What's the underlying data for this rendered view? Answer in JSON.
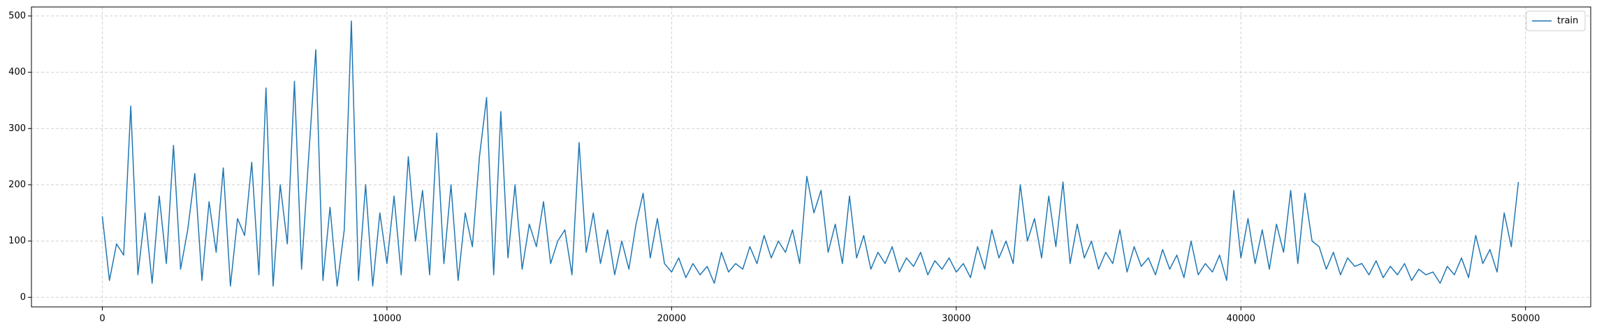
{
  "chart_data": {
    "type": "line",
    "x": [
      0,
      250,
      500,
      750,
      1000,
      1250,
      1500,
      1750,
      2000,
      2250,
      2500,
      2750,
      3000,
      3250,
      3500,
      3750,
      4000,
      4250,
      4500,
      4750,
      5000,
      5250,
      5500,
      5750,
      6000,
      6250,
      6500,
      6750,
      7000,
      7250,
      7500,
      7750,
      8000,
      8250,
      8500,
      8750,
      9000,
      9250,
      9500,
      9750,
      10000,
      10250,
      10500,
      10750,
      11000,
      11250,
      11500,
      11750,
      12000,
      12250,
      12500,
      12750,
      13000,
      13250,
      13500,
      13750,
      14000,
      14250,
      14500,
      14750,
      15000,
      15250,
      15500,
      15750,
      16000,
      16250,
      16500,
      16750,
      17000,
      17250,
      17500,
      17750,
      18000,
      18250,
      18500,
      18750,
      19000,
      19250,
      19500,
      19750,
      20000,
      20250,
      20500,
      20750,
      21000,
      21250,
      21500,
      21750,
      22000,
      22250,
      22500,
      22750,
      23000,
      23250,
      23500,
      23750,
      24000,
      24250,
      24500,
      24750,
      25000,
      25250,
      25500,
      25750,
      26000,
      26250,
      26500,
      26750,
      27000,
      27250,
      27500,
      27750,
      28000,
      28250,
      28500,
      28750,
      29000,
      29250,
      29500,
      29750,
      30000,
      30250,
      30500,
      30750,
      31000,
      31250,
      31500,
      31750,
      32000,
      32250,
      32500,
      32750,
      33000,
      33250,
      33500,
      33750,
      34000,
      34250,
      34500,
      34750,
      35000,
      35250,
      35500,
      35750,
      36000,
      36250,
      36500,
      36750,
      37000,
      37250,
      37500,
      37750,
      38000,
      38250,
      38500,
      38750,
      39000,
      39250,
      39500,
      39750,
      40000,
      40250,
      40500,
      40750,
      41000,
      41250,
      41500,
      41750,
      42000,
      42250,
      42500,
      42750,
      43000,
      43250,
      43500,
      43750,
      44000,
      44250,
      44500,
      44750,
      45000,
      45250,
      45500,
      45750,
      46000,
      46250,
      46500,
      46750,
      47000,
      47250,
      47500,
      47750,
      48000,
      48250,
      48500,
      48750,
      49000,
      49250,
      49500,
      49750
    ],
    "series": [
      {
        "name": "train",
        "color": "#1f77b4",
        "values": [
          144,
          30,
          95,
          75,
          340,
          40,
          150,
          25,
          180,
          60,
          270,
          50,
          120,
          220,
          30,
          170,
          80,
          230,
          20,
          140,
          110,
          240,
          40,
          372,
          20,
          200,
          95,
          384,
          50,
          250,
          440,
          30,
          160,
          20,
          120,
          491,
          30,
          200,
          20,
          150,
          60,
          180,
          40,
          250,
          100,
          190,
          40,
          292,
          60,
          200,
          30,
          150,
          90,
          250,
          355,
          40,
          330,
          70,
          200,
          50,
          130,
          90,
          170,
          60,
          100,
          120,
          40,
          275,
          80,
          150,
          60,
          120,
          40,
          100,
          50,
          130,
          185,
          70,
          140,
          60,
          45,
          70,
          35,
          60,
          40,
          55,
          25,
          80,
          45,
          60,
          50,
          90,
          60,
          110,
          70,
          100,
          80,
          120,
          60,
          215,
          150,
          190,
          80,
          130,
          60,
          180,
          70,
          110,
          50,
          80,
          60,
          90,
          45,
          70,
          55,
          80,
          40,
          65,
          50,
          70,
          45,
          60,
          35,
          90,
          50,
          120,
          70,
          100,
          60,
          200,
          100,
          140,
          70,
          180,
          90,
          205,
          60,
          130,
          70,
          100,
          50,
          80,
          60,
          120,
          45,
          90,
          55,
          70,
          40,
          85,
          50,
          75,
          35,
          100,
          40,
          60,
          45,
          75,
          30,
          190,
          70,
          140,
          60,
          120,
          50,
          130,
          80,
          190,
          60,
          185,
          100,
          90,
          50,
          80,
          40,
          70,
          55,
          60,
          40,
          65,
          35,
          55,
          40,
          60,
          30,
          50,
          40,
          45,
          25,
          55,
          40,
          70,
          35,
          110,
          60,
          85,
          45,
          150,
          90,
          205
        ]
      }
    ],
    "xlim": [
      -2490,
      52290
    ],
    "ylim": [
      -17,
      516
    ],
    "xticks": [
      0,
      10000,
      20000,
      30000,
      40000,
      50000
    ],
    "yticks": [
      0,
      100,
      200,
      300,
      400,
      500
    ],
    "grid": true,
    "legend": "upper right"
  }
}
